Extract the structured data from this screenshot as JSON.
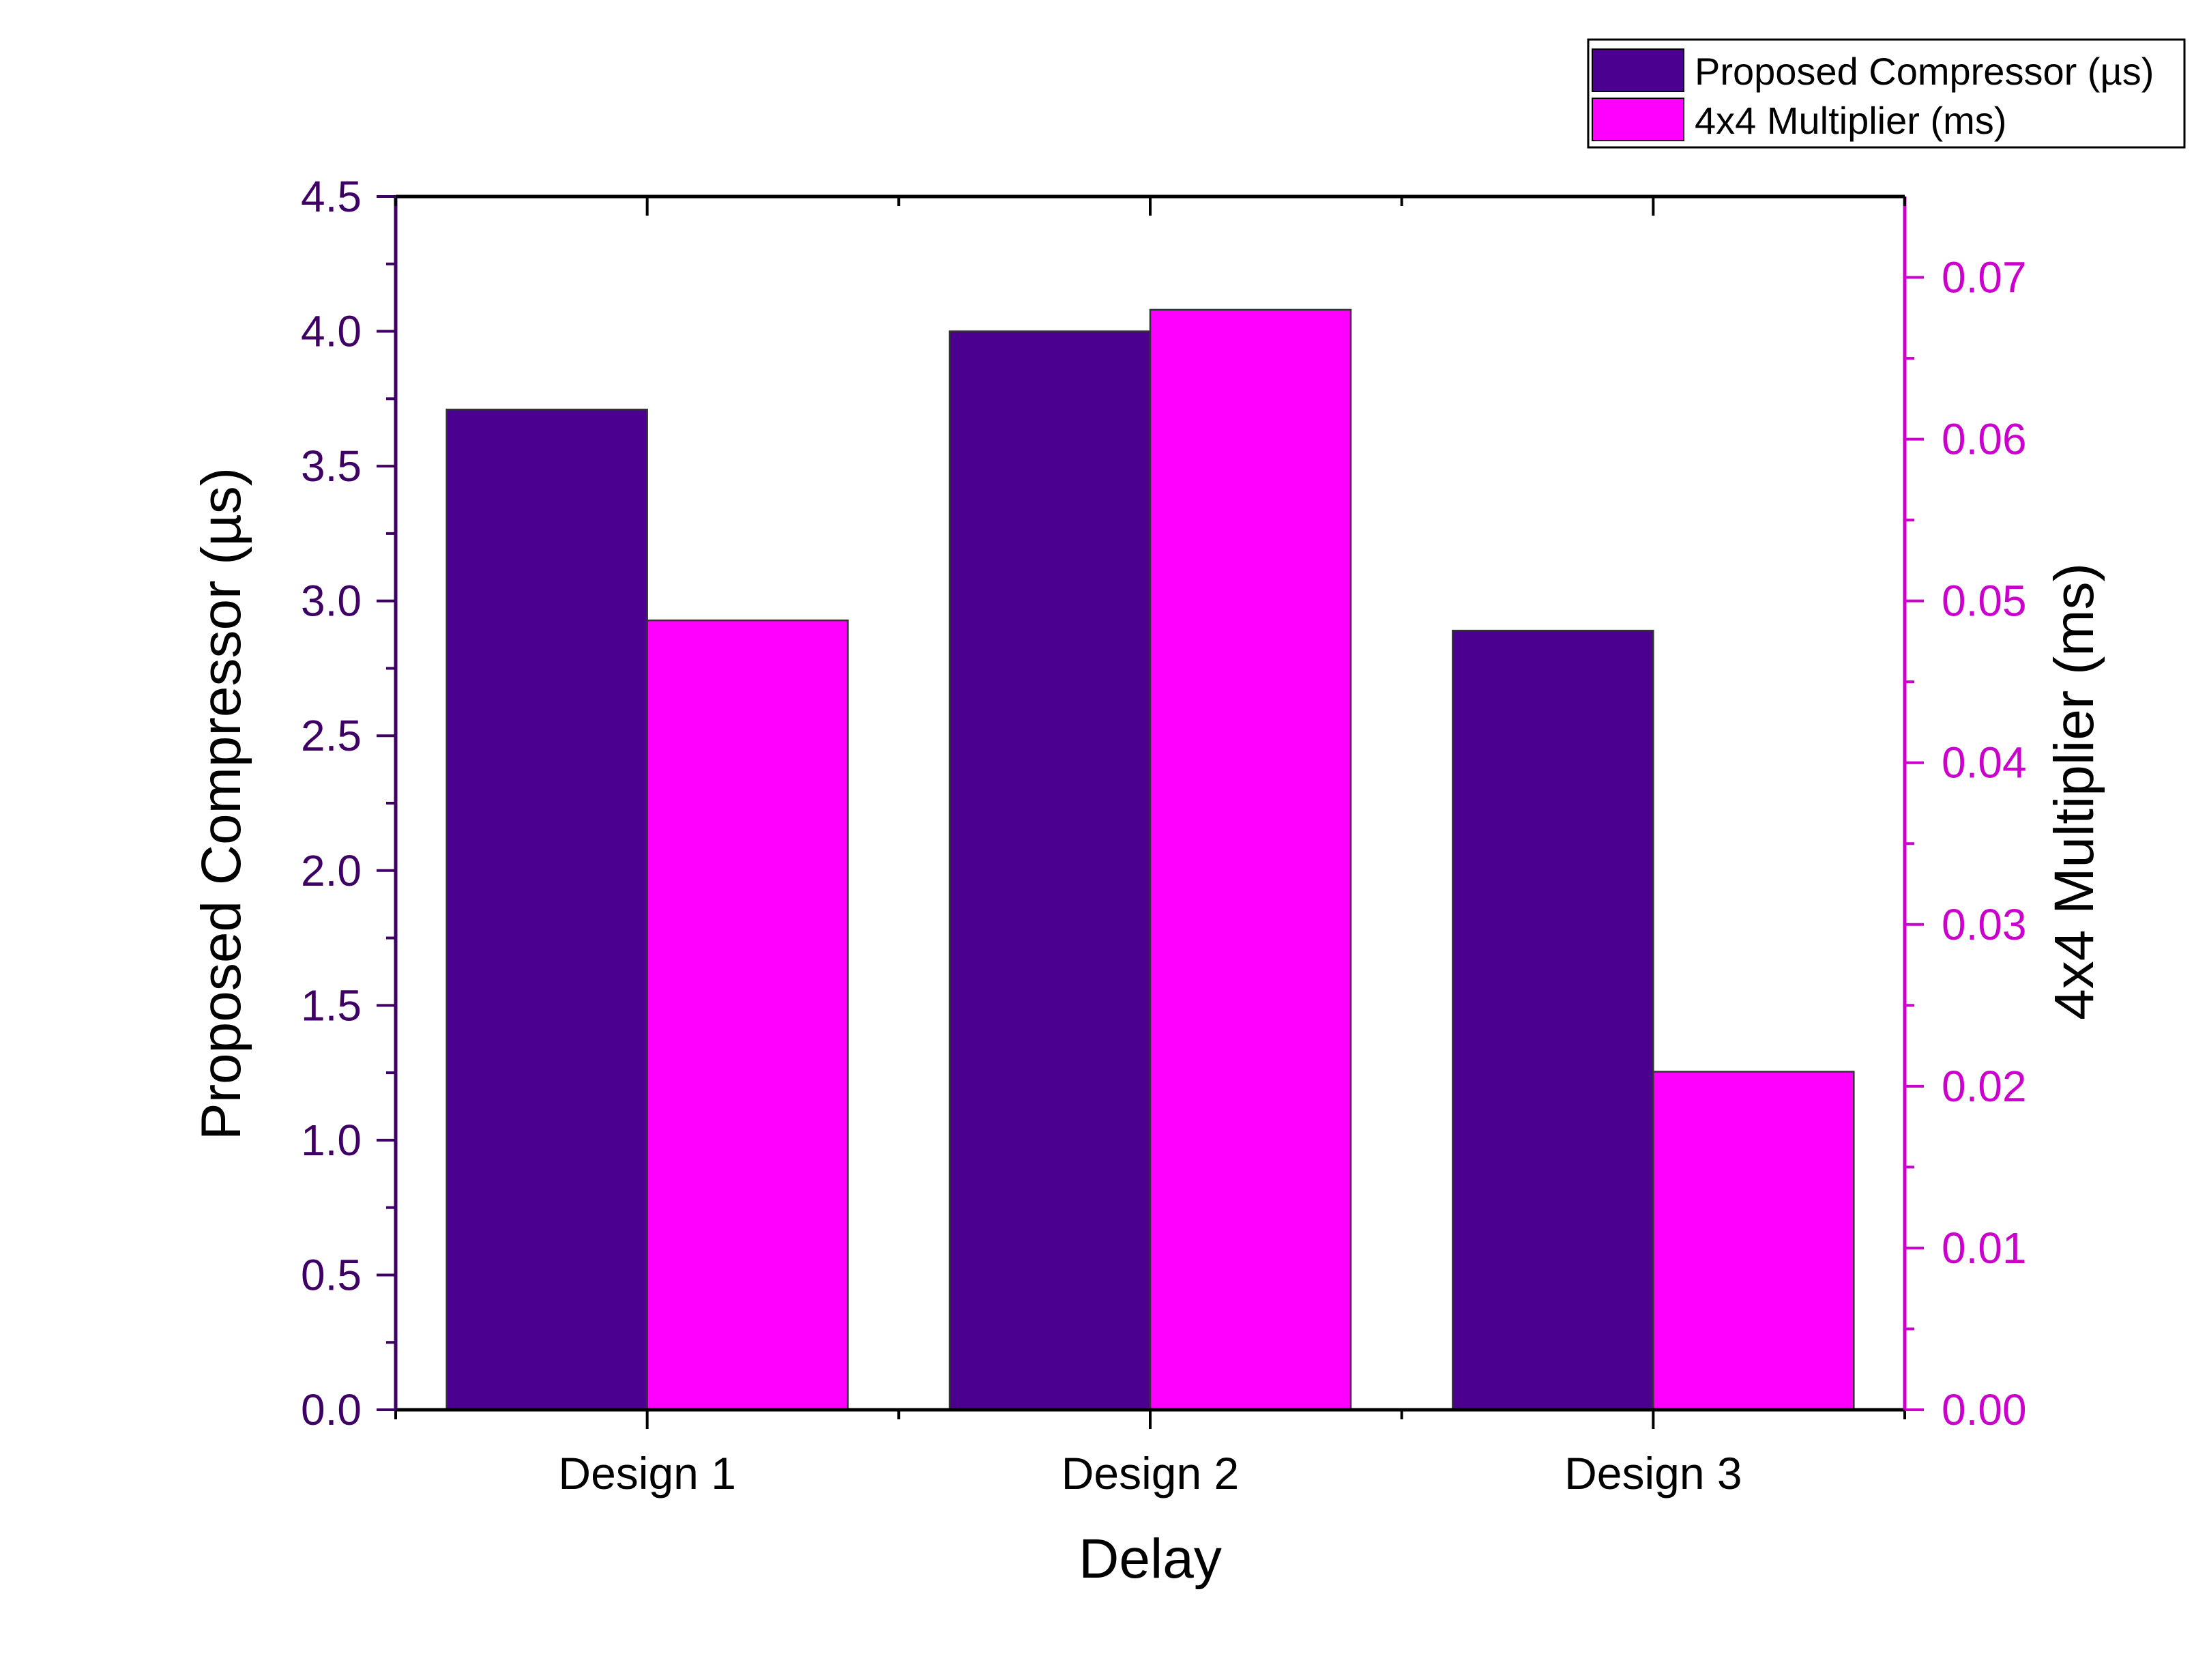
{
  "chart_data": {
    "type": "bar",
    "categories": [
      "Design 1",
      "Design 2",
      "Design 3"
    ],
    "xlabel": "Delay",
    "series": [
      {
        "name": "Proposed Compressor (µs)",
        "axis": "left",
        "color": "#4B0090",
        "values": [
          3.71,
          4.0,
          2.89
        ]
      },
      {
        "name": "4x4 Multiplier (ms)",
        "axis": "right",
        "color": "#FF00FF",
        "values": [
          0.0488,
          0.068,
          0.0209
        ]
      }
    ],
    "left_axis": {
      "label": "Proposed Compressor (µs)",
      "range": [
        0,
        4.5
      ],
      "ticks": [
        "0.0",
        "0.5",
        "1.0",
        "1.5",
        "2.0",
        "2.5",
        "3.0",
        "3.5",
        "4.0",
        "4.5"
      ],
      "color": "#3F0066"
    },
    "right_axis": {
      "label": "4x4 Multiplier (ms)",
      "range": [
        0,
        0.075
      ],
      "ticks": [
        "0.00",
        "0.01",
        "0.02",
        "0.03",
        "0.04",
        "0.05",
        "0.06",
        "0.07"
      ],
      "color": "#CC00CC"
    },
    "legend": {
      "position": "top-right"
    },
    "grid": false
  }
}
